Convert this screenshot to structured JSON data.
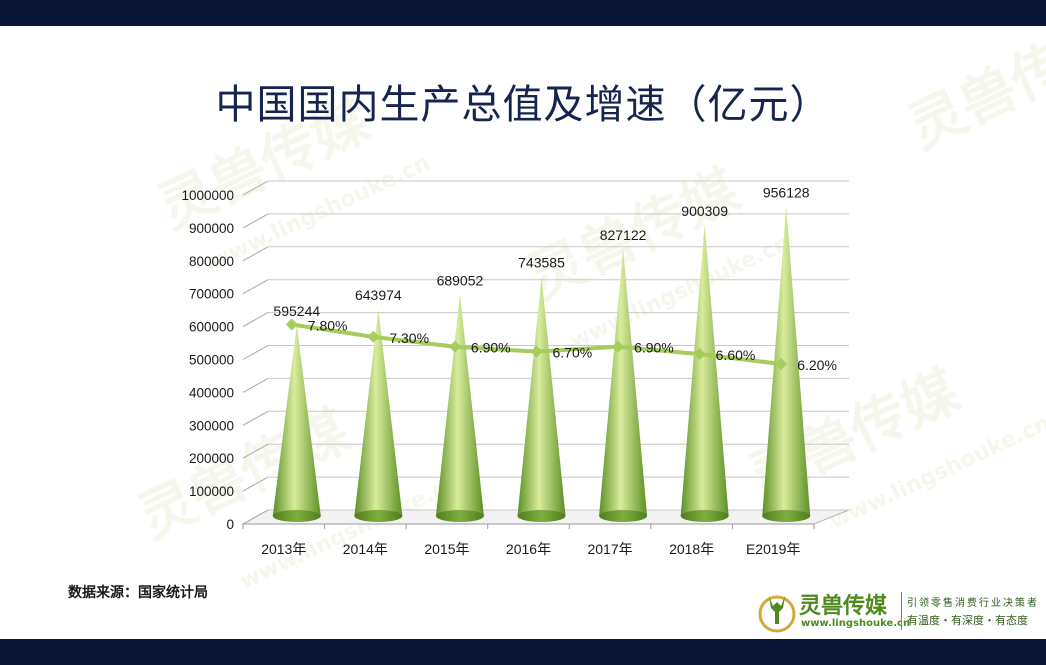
{
  "title": "中国国内生产总值及增速（亿元）",
  "source": "数据来源：国家统计局",
  "logo": {
    "name": "灵兽传媒",
    "url": "www.lingshouke.cn",
    "slogan": "引领零售消费行业决策者",
    "motto": "有温度・有深度・有态度"
  },
  "watermark": {
    "name": "灵兽传媒",
    "url": "www.lingshouke.cn"
  },
  "colors": {
    "bar_dark": "#5c8f24",
    "bar_light": "#d9ec9c",
    "line": "#a6cc5b",
    "nav": "#0b1535",
    "title": "#16244f"
  },
  "chart_data": {
    "type": "bar",
    "categories": [
      "2013年",
      "2014年",
      "2015年",
      "2016年",
      "2017年",
      "2018年",
      "E2019年"
    ],
    "series": [
      {
        "name": "国内生产总值",
        "type": "bar",
        "values": [
          595244,
          643974,
          689052,
          743585,
          827122,
          900309,
          956128
        ]
      },
      {
        "name": "增速",
        "type": "line",
        "values": [
          7.8,
          7.3,
          6.9,
          6.7,
          6.9,
          6.6,
          6.2
        ],
        "labels": [
          "7.80%",
          "7.30%",
          "6.90%",
          "6.70%",
          "6.90%",
          "6.60%",
          "6.20%"
        ]
      }
    ],
    "ylim": [
      0,
      1000000
    ],
    "yticks": [
      0,
      100000,
      200000,
      300000,
      400000,
      500000,
      600000,
      700000,
      800000,
      900000,
      1000000
    ],
    "ytick_labels": [
      "0",
      "100000",
      "200000",
      "300000",
      "400000",
      "500000",
      "600000",
      "700000",
      "800000",
      "900000",
      "1000000"
    ],
    "grid": true,
    "xlabel": "",
    "ylabel": ""
  }
}
